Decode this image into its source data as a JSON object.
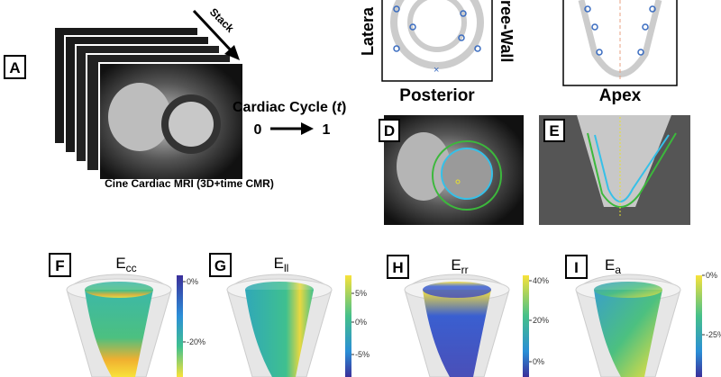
{
  "panel_a": {
    "label": "A",
    "stack": "Stack",
    "cycle": [
      "Cardiac Cycle (",
      "t",
      ")"
    ],
    "start": "0",
    "end": "1",
    "caption": "Cine Cardiac MRI (3D+time CMR)"
  },
  "panel_b": {
    "left": "Latera",
    "right": "ree-Wall",
    "bottom": "Posterior"
  },
  "panel_c": {
    "bottom": "Apex"
  },
  "panel_d": {
    "label": "D"
  },
  "panel_e": {
    "label": "E"
  },
  "strain_panels": [
    {
      "label": "F",
      "letter": "E",
      "sub": "cc",
      "ticks": [
        "0%",
        "-20%"
      ]
    },
    {
      "label": "G",
      "letter": "E",
      "sub": "ll",
      "ticks": [
        "5%",
        "0%",
        "-5%"
      ]
    },
    {
      "label": "H",
      "letter": "E",
      "sub": "rr",
      "ticks": [
        "40%",
        "20%",
        "0%"
      ]
    },
    {
      "label": "I",
      "letter": "E",
      "sub": "a",
      "ticks": [
        "0%",
        "-25%"
      ]
    }
  ]
}
